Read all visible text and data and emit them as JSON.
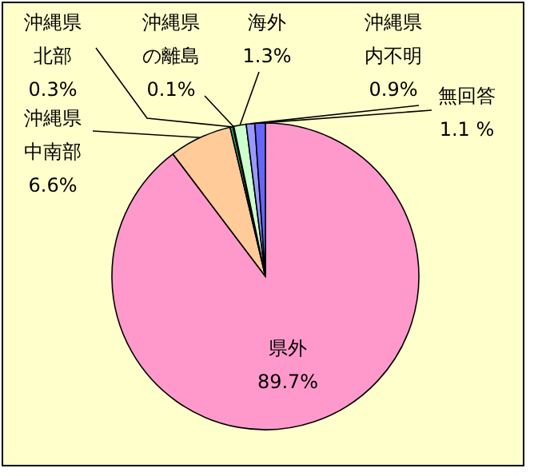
{
  "chart_data": {
    "type": "pie",
    "categories": [
      "県外",
      "沖縄県中南部",
      "沖縄県北部",
      "沖縄県の離島",
      "海外",
      "沖縄県内不明",
      "無回答"
    ],
    "values": [
      89.7,
      6.6,
      0.3,
      0.1,
      1.3,
      0.9,
      1.1
    ],
    "value_labels": [
      "89.7%",
      "6.6%",
      "0.3%",
      "0.1%",
      "1.3%",
      "0.9%",
      "1.1 %"
    ],
    "colors": [
      "#ff99cc",
      "#ffcc99",
      "#339966",
      "#ffff99",
      "#ccffcc",
      "#9999ff",
      "#6666ff"
    ]
  }
}
